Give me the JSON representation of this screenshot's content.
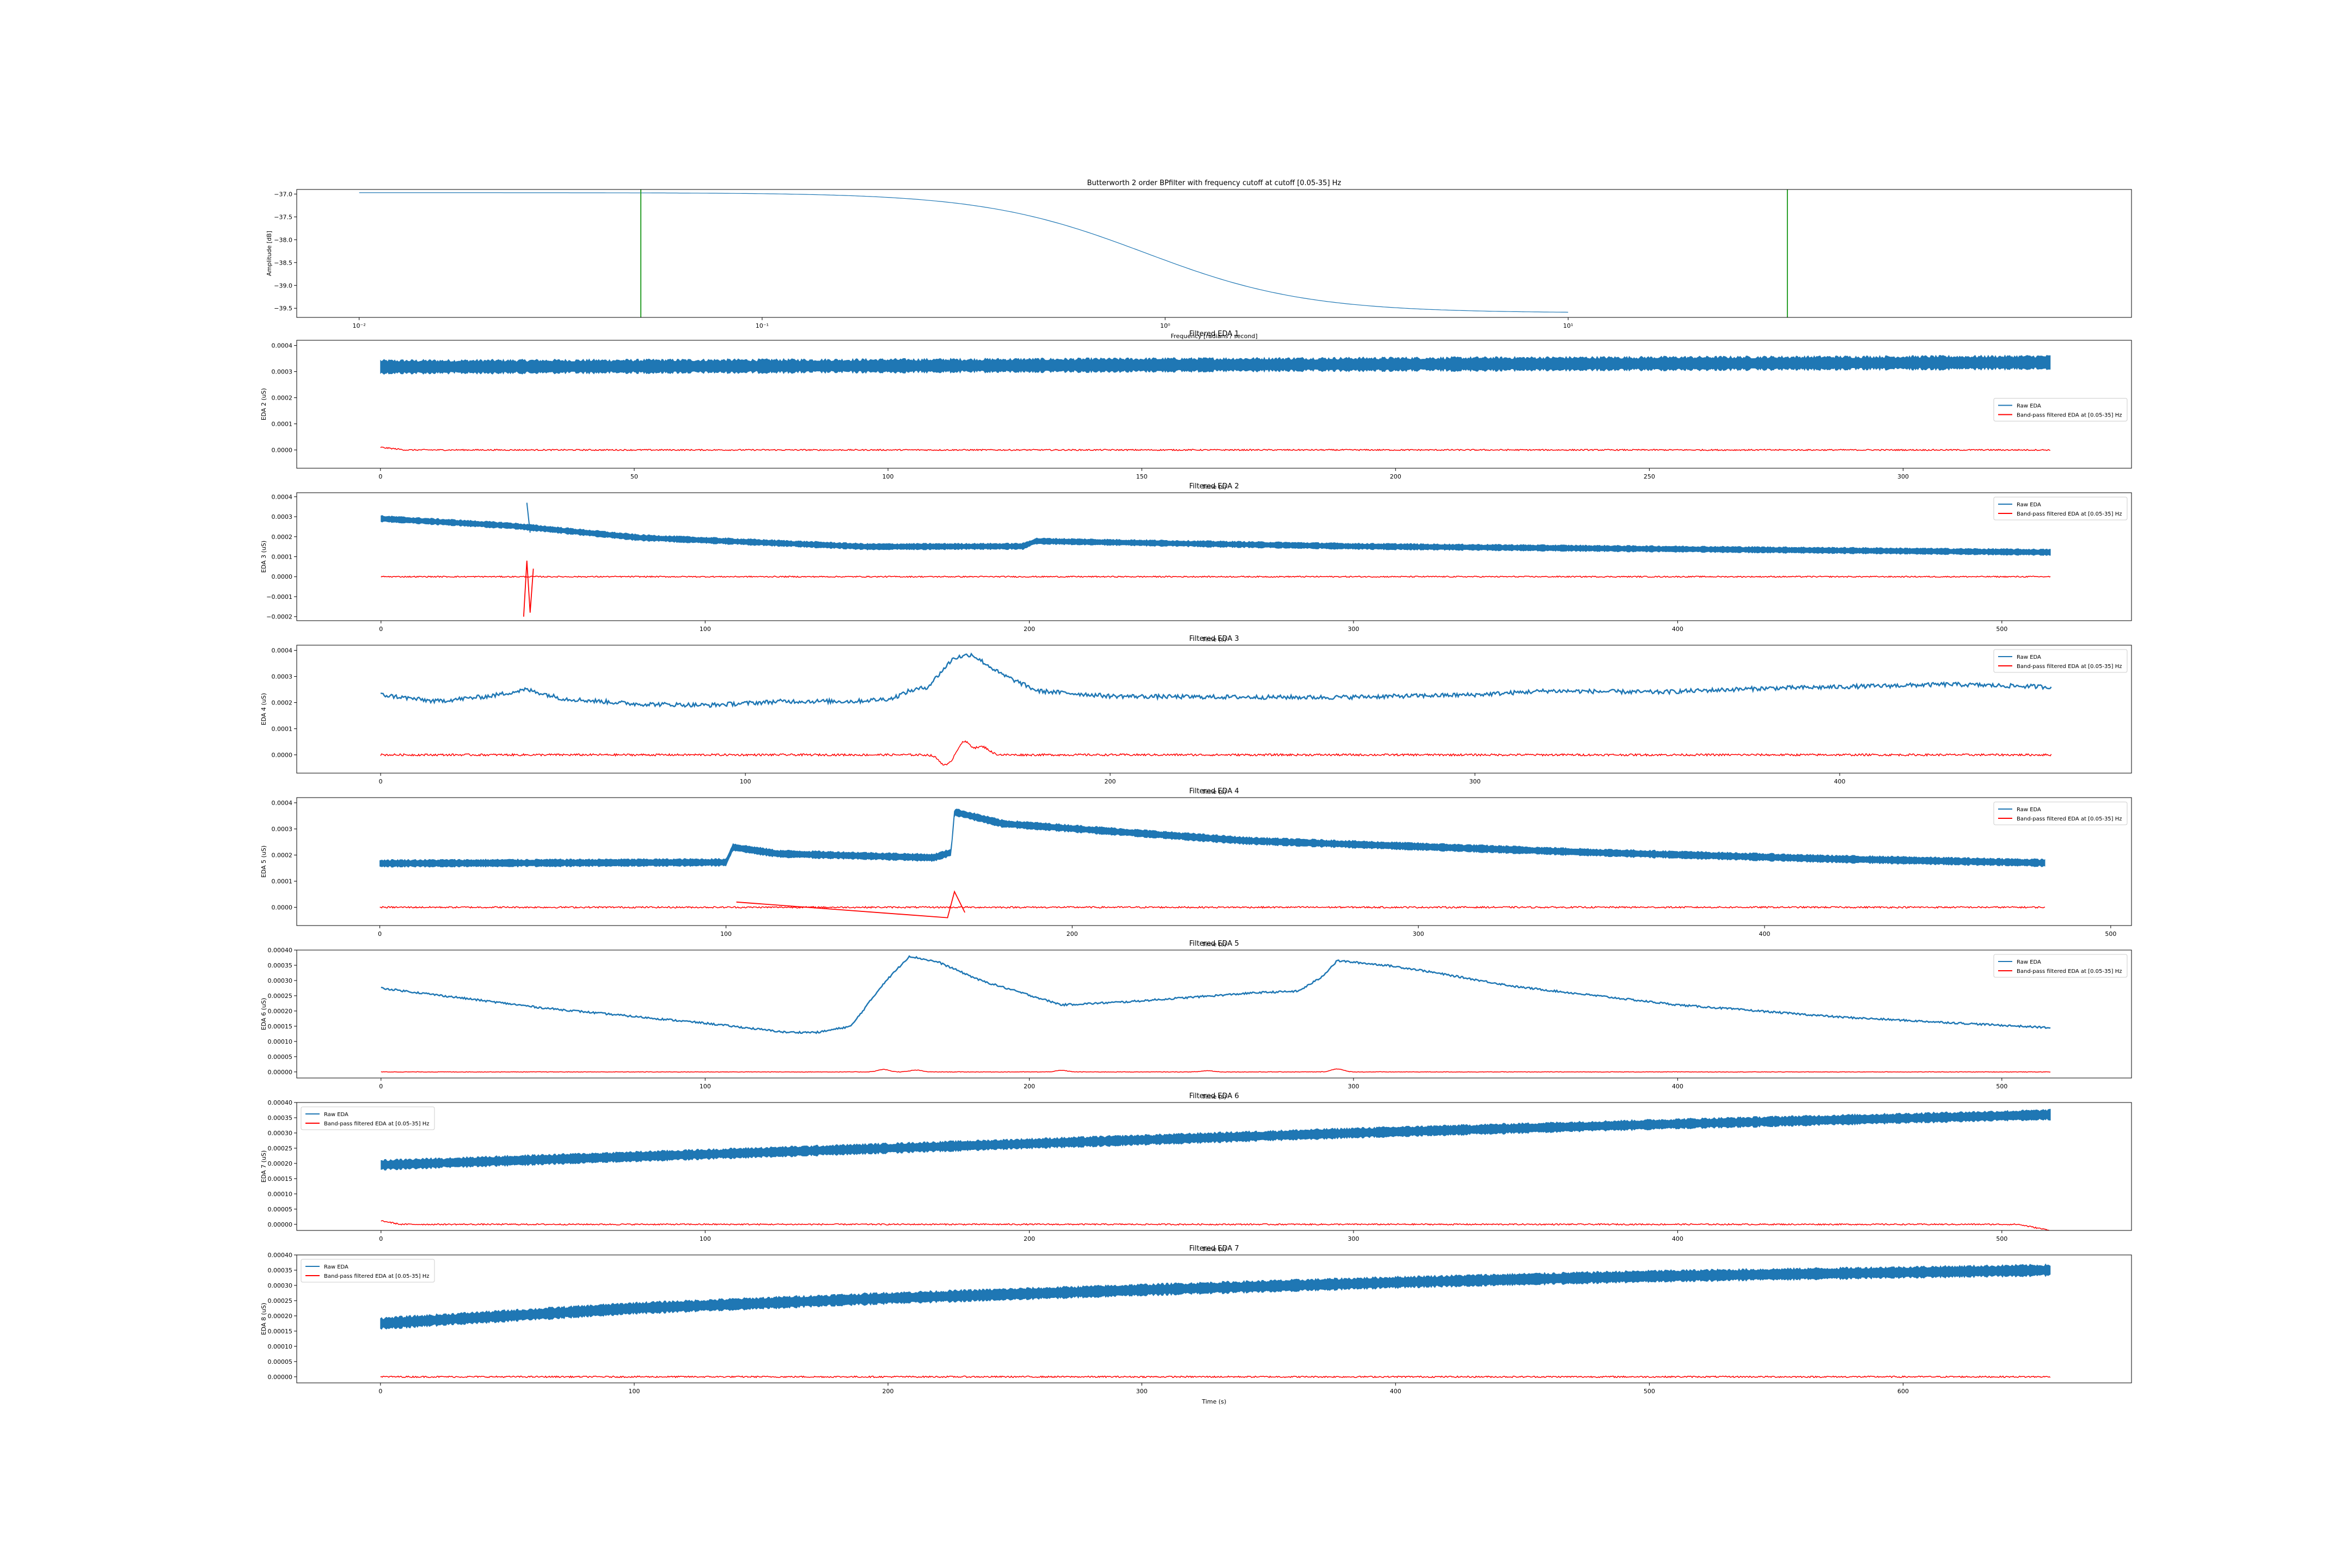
{
  "colors": {
    "raw": "#1f77b4",
    "filtered": "#ff0000",
    "cutoff": "#2ca02c",
    "response": "#1f77b4"
  },
  "chart_data": [
    {
      "type": "line",
      "title": "Butterworth 2 order  BPfilter with frequency cutoff at cutoff [0.05-35] Hz",
      "xlabel": "Frequency [radians / second]",
      "ylabel": "Amplitude [dB]",
      "xscale": "log",
      "xlim": [
        0.007,
        250
      ],
      "ylim": [
        -39.7,
        -36.9
      ],
      "xticks": [
        0.01,
        0.1,
        1,
        10
      ],
      "xtick_labels": [
        "10⁻²",
        "10⁻¹",
        "10⁰",
        "10¹"
      ],
      "yticks": [
        -37.0,
        -37.5,
        -38.0,
        -38.5,
        -39.0,
        -39.5
      ],
      "ytick_labels": [
        "−37.0",
        "−37.5",
        "−38.0",
        "−38.5",
        "−39.0",
        "−39.5"
      ],
      "cutoff_lines": [
        0.05,
        35
      ],
      "response": {
        "x_range": [
          0.01,
          10
        ],
        "y_start": -36.97,
        "y_end": -39.6,
        "mid_log10": -0.05,
        "width": 0.2
      }
    },
    {
      "type": "line",
      "title": "Filtered EDA 1",
      "xlabel": "Time (s)",
      "ylabel": "EDA 2 (uS)",
      "xlim": [
        -16.5,
        345
      ],
      "ylim": [
        -7e-05,
        0.00042
      ],
      "xticks": [
        0,
        50,
        100,
        150,
        200,
        250,
        300
      ],
      "yticks": [
        0.0,
        0.0001,
        0.0002,
        0.0003,
        0.0004
      ],
      "ytick_labels": [
        "0.0000",
        "0.0001",
        "0.0002",
        "0.0003",
        "0.0004"
      ],
      "legend": "center-right",
      "legend_entries": [
        "Raw EDA",
        "Band-pass filtered EDA at [0.05-35] Hz"
      ],
      "raw": {
        "style": "band",
        "t_end": 329,
        "points": [
          [
            0,
            0.000318
          ],
          [
            100,
            0.000322
          ],
          [
            200,
            0.000328
          ],
          [
            329,
            0.000335
          ]
        ],
        "half_width": 2.2e-05
      },
      "filtered": {
        "t_end": 329,
        "points": [
          [
            0,
            1e-05
          ],
          [
            5,
            0.0
          ],
          [
            329,
            0.0
          ]
        ],
        "noise": 2.5e-06
      }
    },
    {
      "type": "line",
      "title": "Filtered EDA 2",
      "xlabel": "Time (s)",
      "ylabel": "EDA 3 (uS)",
      "xlim": [
        -26,
        540
      ],
      "ylim": [
        -0.00022,
        0.00042
      ],
      "xticks": [
        0,
        100,
        200,
        300,
        400,
        500
      ],
      "yticks": [
        -0.0002,
        -0.0001,
        0.0,
        0.0001,
        0.0002,
        0.0003,
        0.0004
      ],
      "ytick_labels": [
        "−0.0002",
        "−0.0001",
        "0.0000",
        "0.0001",
        "0.0002",
        "0.0003",
        "0.0004"
      ],
      "legend": "upper-right",
      "legend_entries": [
        "Raw EDA",
        "Band-pass filtered EDA at [0.05-35] Hz"
      ],
      "raw": {
        "style": "band",
        "t_end": 515,
        "points": [
          [
            0,
            0.00029
          ],
          [
            40,
            0.000255
          ],
          [
            80,
            0.000195
          ],
          [
            150,
            0.00015
          ],
          [
            198,
            0.000152
          ],
          [
            202,
            0.000178
          ],
          [
            250,
            0.000165
          ],
          [
            300,
            0.000152
          ],
          [
            400,
            0.000138
          ],
          [
            515,
            0.000122
          ]
        ],
        "half_width": 1.3e-05,
        "spikes": [
          [
            45,
            0.00037
          ],
          [
            46,
            0.00022
          ]
        ]
      },
      "filtered": {
        "t_end": 515,
        "points": [
          [
            0,
            0.0
          ],
          [
            515,
            0.0
          ]
        ],
        "noise": 3e-06,
        "spikes": [
          [
            44,
            -0.0002
          ],
          [
            45,
            8e-05
          ],
          [
            46,
            -0.00018
          ],
          [
            47,
            4e-05
          ]
        ]
      }
    },
    {
      "type": "line",
      "title": "Filtered EDA 3",
      "xlabel": "Time (s)",
      "ylabel": "EDA 4 (uS)",
      "xlim": [
        -23,
        480
      ],
      "ylim": [
        -7e-05,
        0.00042
      ],
      "xticks": [
        0,
        100,
        200,
        300,
        400
      ],
      "yticks": [
        0.0,
        0.0001,
        0.0002,
        0.0003,
        0.0004
      ],
      "ytick_labels": [
        "0.0000",
        "0.0001",
        "0.0002",
        "0.0003",
        "0.0004"
      ],
      "legend": "upper-right",
      "legend_entries": [
        "Raw EDA",
        "Band-pass filtered EDA at [0.05-35] Hz"
      ],
      "raw": {
        "style": "line",
        "t_end": 458,
        "points": [
          [
            0,
            0.00023
          ],
          [
            15,
            0.000205
          ],
          [
            30,
            0.000225
          ],
          [
            40,
            0.00025
          ],
          [
            50,
            0.000215
          ],
          [
            70,
            0.000195
          ],
          [
            90,
            0.00019
          ],
          [
            110,
            0.000205
          ],
          [
            130,
            0.000205
          ],
          [
            140,
            0.000215
          ],
          [
            145,
            0.000245
          ],
          [
            150,
            0.00026
          ],
          [
            157,
            0.00037
          ],
          [
            162,
            0.000385
          ],
          [
            170,
            0.00031
          ],
          [
            180,
            0.000245
          ],
          [
            200,
            0.000225
          ],
          [
            220,
            0.000222
          ],
          [
            260,
            0.00022
          ],
          [
            300,
            0.00023
          ],
          [
            320,
            0.000245
          ],
          [
            350,
            0.00024
          ],
          [
            380,
            0.000255
          ],
          [
            400,
            0.00026
          ],
          [
            430,
            0.00027
          ],
          [
            458,
            0.00026
          ]
        ],
        "ripple": 8e-06
      },
      "filtered": {
        "t_end": 458,
        "points": [
          [
            0,
            0.0
          ],
          [
            458,
            0.0
          ]
        ],
        "noise": 4e-06,
        "events": [
          [
            155,
            -4e-05
          ],
          [
            160,
            5e-05
          ],
          [
            165,
            3e-05
          ]
        ]
      }
    },
    {
      "type": "line",
      "title": "Filtered EDA 4",
      "xlabel": "Time (s)",
      "ylabel": "EDA 5 (uS)",
      "xlim": [
        -24,
        506
      ],
      "ylim": [
        -7e-05,
        0.00042
      ],
      "xticks": [
        0,
        100,
        200,
        300,
        400,
        500
      ],
      "yticks": [
        0.0,
        0.0001,
        0.0002,
        0.0003,
        0.0004
      ],
      "ytick_labels": [
        "0.0000",
        "0.0001",
        "0.0002",
        "0.0003",
        "0.0004"
      ],
      "legend": "upper-right",
      "legend_entries": [
        "Raw EDA",
        "Band-pass filtered EDA at [0.05-35] Hz"
      ],
      "raw": {
        "style": "band",
        "t_end": 481,
        "points": [
          [
            0,
            0.000168
          ],
          [
            100,
            0.000172
          ],
          [
            102,
            0.00023
          ],
          [
            115,
            0.000205
          ],
          [
            160,
            0.00019
          ],
          [
            165,
            0.00021
          ],
          [
            166,
            0.000365
          ],
          [
            180,
            0.00032
          ],
          [
            250,
            0.000255
          ],
          [
            350,
            0.00021
          ],
          [
            420,
            0.000185
          ],
          [
            481,
            0.00017
          ]
        ],
        "half_width": 1.2e-05
      },
      "filtered": {
        "t_end": 481,
        "points": [
          [
            0,
            0.0
          ],
          [
            481,
            0.0
          ]
        ],
        "noise": 3e-06,
        "spikes": [
          [
            103,
            2e-05
          ],
          [
            164,
            -4e-05
          ],
          [
            166,
            6e-05
          ],
          [
            169,
            -2e-05
          ]
        ]
      }
    },
    {
      "type": "line",
      "title": "Filtered EDA 5",
      "xlabel": "Time (s)",
      "ylabel": "EDA 6 (uS)",
      "xlim": [
        -26,
        540
      ],
      "ylim": [
        -2e-05,
        0.0004
      ],
      "xticks": [
        0,
        100,
        200,
        300,
        400,
        500
      ],
      "yticks": [
        0.0,
        5e-05,
        0.0001,
        0.00015,
        0.0002,
        0.00025,
        0.0003,
        0.00035,
        0.0004
      ],
      "ytick_labels": [
        "0.00000",
        "0.00005",
        "0.00010",
        "0.00015",
        "0.00020",
        "0.00025",
        "0.00030",
        "0.00035",
        "0.00040"
      ],
      "legend": "upper-right",
      "legend_entries": [
        "Raw EDA",
        "Band-pass filtered EDA at [0.05-35] Hz"
      ],
      "raw": {
        "style": "line",
        "t_end": 515,
        "points": [
          [
            0,
            0.000275
          ],
          [
            50,
            0.00021
          ],
          [
            100,
            0.00016
          ],
          [
            125,
            0.00013
          ],
          [
            135,
            0.00013
          ],
          [
            145,
            0.00015
          ],
          [
            155,
            0.00029
          ],
          [
            163,
            0.00038
          ],
          [
            172,
            0.00036
          ],
          [
            185,
            0.0003
          ],
          [
            210,
            0.00022
          ],
          [
            230,
            0.00023
          ],
          [
            250,
            0.000245
          ],
          [
            270,
            0.00026
          ],
          [
            283,
            0.000265
          ],
          [
            290,
            0.00031
          ],
          [
            295,
            0.000365
          ],
          [
            310,
            0.00035
          ],
          [
            320,
            0.000335
          ],
          [
            350,
            0.00028
          ],
          [
            400,
            0.00022
          ],
          [
            450,
            0.00018
          ],
          [
            515,
            0.000145
          ]
        ],
        "ripple": 3e-06
      },
      "filtered": {
        "t_end": 515,
        "points": [
          [
            0,
            0.0
          ],
          [
            515,
            0.0
          ]
        ],
        "noise": 8e-07,
        "events": [
          [
            155,
            8e-06
          ],
          [
            165,
            6e-06
          ],
          [
            210,
            5e-06
          ],
          [
            255,
            4e-06
          ],
          [
            295,
            1e-05
          ]
        ]
      }
    },
    {
      "type": "line",
      "title": "Filtered EDA 6",
      "xlabel": "Time (s)",
      "ylabel": "EDA 7 (uS)",
      "xlim": [
        -26,
        540
      ],
      "ylim": [
        -2e-05,
        0.0004
      ],
      "xticks": [
        0,
        100,
        200,
        300,
        400,
        500
      ],
      "yticks": [
        0.0,
        5e-05,
        0.0001,
        0.00015,
        0.0002,
        0.00025,
        0.0003,
        0.00035,
        0.0004
      ],
      "ytick_labels": [
        "0.00000",
        "0.00005",
        "0.00010",
        "0.00015",
        "0.00020",
        "0.00025",
        "0.00030",
        "0.00035",
        "0.00040"
      ],
      "legend": "upper-left",
      "legend_entries": [
        "Raw EDA",
        "Band-pass filtered EDA at [0.05-35] Hz"
      ],
      "raw": {
        "style": "band",
        "t_end": 515,
        "points": [
          [
            0,
            0.000195
          ],
          [
            100,
            0.00023
          ],
          [
            200,
            0.000265
          ],
          [
            300,
            0.0003
          ],
          [
            400,
            0.00033
          ],
          [
            515,
            0.00036
          ]
        ],
        "half_width": 1.4e-05
      },
      "filtered": {
        "t_end": 515,
        "points": [
          [
            0,
            1.2e-05
          ],
          [
            6,
            0.0
          ],
          [
            505,
            0.0
          ],
          [
            515,
            -2e-05
          ]
        ],
        "noise": 2.2e-06
      }
    },
    {
      "type": "line",
      "title": "Filtered EDA 7",
      "xlabel": "Time (s)",
      "ylabel": "EDA 8 (uS)",
      "xlim": [
        -33,
        690
      ],
      "ylim": [
        -2e-05,
        0.0004
      ],
      "xticks": [
        0,
        100,
        200,
        300,
        400,
        500,
        600
      ],
      "yticks": [
        0.0,
        5e-05,
        0.0001,
        0.00015,
        0.0002,
        0.00025,
        0.0003,
        0.00035,
        0.0004
      ],
      "ytick_labels": [
        "0.00000",
        "0.00005",
        "0.00010",
        "0.00015",
        "0.00020",
        "0.00025",
        "0.00030",
        "0.00035",
        "0.00040"
      ],
      "legend": "upper-left",
      "legend_entries": [
        "Raw EDA",
        "Band-pass filtered EDA at [0.05-35] Hz"
      ],
      "raw": {
        "style": "band",
        "t_end": 658,
        "points": [
          [
            0,
            0.000175
          ],
          [
            100,
            0.000225
          ],
          [
            200,
            0.000258
          ],
          [
            300,
            0.000285
          ],
          [
            400,
            0.00031
          ],
          [
            500,
            0.00033
          ],
          [
            658,
            0.00035
          ]
        ],
        "half_width": 1.6e-05
      },
      "filtered": {
        "t_end": 658,
        "points": [
          [
            0,
            0.0
          ],
          [
            658,
            0.0
          ]
        ],
        "noise": 2.5e-06,
        "spikes": [
          [
            658,
            1.4e-05
          ]
        ]
      }
    }
  ]
}
